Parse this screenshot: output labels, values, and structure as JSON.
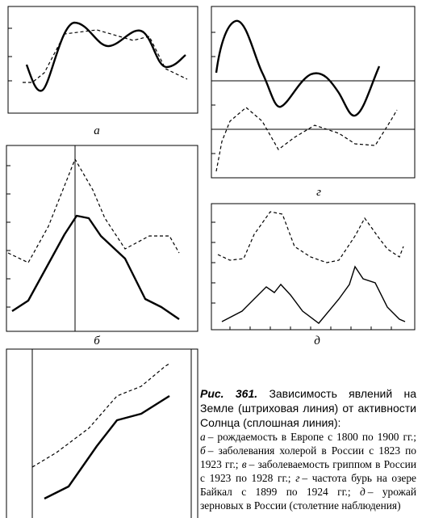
{
  "panels": [
    {
      "label": "а"
    },
    {
      "label": "б"
    },
    {
      "label": "г"
    },
    {
      "label": "д"
    }
  ],
  "caption": {
    "number": "Рис. 361.",
    "title": "Зависимость явлений на Земле (штриховая линия) от активности Солнца (сплошная линия):",
    "items": [
      {
        "letter": "а",
        "text": "– рождаемость в Европе с 1800 по 1900 гг.;"
      },
      {
        "letter": "б",
        "text": "– заболевания холерой в России с 1823 по 1923 гг.;"
      },
      {
        "letter": "в",
        "text": "– заболеваемость гриппом в России с 1923 по 1928 гг.;"
      },
      {
        "letter": "г",
        "text": "– частота бурь на озере Байкал с 1899 по 1924 гг.;"
      },
      {
        "letter": "д",
        "text": "– урожай зерновых в России (столетние наблюдения)"
      }
    ]
  }
}
